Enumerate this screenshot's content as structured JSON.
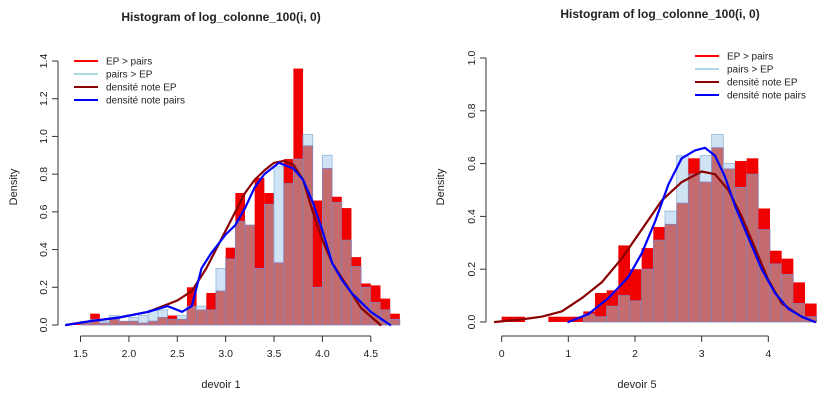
{
  "chart_data": [
    {
      "type": "histogram",
      "title": "Histogram of log_colonne_100(i, 0)",
      "xlabel": "devoir 1",
      "ylabel": "Density",
      "xlim": [
        1.35,
        4.75
      ],
      "ylim": [
        0,
        1.4
      ],
      "xticks": [
        1.5,
        2.0,
        2.5,
        3.0,
        3.5,
        4.0,
        4.5
      ],
      "xtick_labels": [
        "1.5",
        "2.0",
        "2.5",
        "3.0",
        "3.5",
        "4.0",
        "4.5"
      ],
      "yticks": [
        0,
        0.2,
        0.4,
        0.6,
        0.8,
        1.0,
        1.2,
        1.4
      ],
      "ytick_labels": [
        "0.0",
        "0.2",
        "0.4",
        "0.6",
        "0.8",
        "1.0",
        "1.2",
        "1.4"
      ],
      "legend": {
        "position": "top-left",
        "items": [
          {
            "label": "EP > pairs",
            "color": "#ff0000",
            "kind": "line"
          },
          {
            "label": "pairs > EP",
            "color": "#add8e6",
            "kind": "line"
          },
          {
            "label": "densité note EP",
            "color": "#8b0000",
            "kind": "line"
          },
          {
            "label": "densité note pairs",
            "color": "#0000ff",
            "kind": "line"
          }
        ]
      },
      "bins": {
        "start": 1.4,
        "width": 0.1,
        "ep": [
          0.01,
          0.01,
          0.06,
          0.01,
          0.03,
          0.02,
          0.02,
          0.01,
          0.02,
          0.04,
          0.05,
          0.03,
          0.2,
          0.08,
          0.17,
          0.18,
          0.41,
          0.7,
          0.53,
          0.78,
          0.7,
          0.33,
          0.88,
          1.36,
          0.95,
          0.66,
          0.83,
          0.68,
          0.62,
          0.36,
          0.22,
          0.21,
          0.14,
          0.06
        ],
        "pairs": [
          0.0,
          0.02,
          0.03,
          0.02,
          0.05,
          0.02,
          0.04,
          0.05,
          0.08,
          0.08,
          0.03,
          0.05,
          0.1,
          0.1,
          0.08,
          0.3,
          0.35,
          0.55,
          0.53,
          0.3,
          0.64,
          0.84,
          0.75,
          0.88,
          1.01,
          0.2,
          0.9,
          0.65,
          0.45,
          0.31,
          0.2,
          0.12,
          0.08,
          0.03
        ]
      },
      "series": [
        {
          "name": "densité note EP",
          "color": "#8b0000",
          "x": [
            1.35,
            1.6,
            1.9,
            2.2,
            2.5,
            2.65,
            2.8,
            2.95,
            3.1,
            3.2,
            3.3,
            3.4,
            3.5,
            3.6,
            3.7,
            3.8,
            3.9,
            4.0,
            4.1,
            4.2,
            4.4,
            4.6
          ],
          "y": [
            0.0,
            0.02,
            0.04,
            0.07,
            0.13,
            0.18,
            0.3,
            0.45,
            0.6,
            0.7,
            0.77,
            0.82,
            0.86,
            0.87,
            0.85,
            0.77,
            0.6,
            0.45,
            0.33,
            0.25,
            0.09,
            0.0
          ]
        },
        {
          "name": "densité note pairs",
          "color": "#0000ff",
          "x": [
            1.35,
            1.6,
            1.9,
            2.2,
            2.4,
            2.55,
            2.65,
            2.75,
            2.85,
            3.0,
            3.1,
            3.2,
            3.3,
            3.4,
            3.5,
            3.55,
            3.6,
            3.7,
            3.8,
            3.9,
            4.0,
            4.1,
            4.2,
            4.3,
            4.5,
            4.7
          ],
          "y": [
            0.0,
            0.02,
            0.04,
            0.07,
            0.1,
            0.07,
            0.1,
            0.3,
            0.38,
            0.48,
            0.53,
            0.62,
            0.73,
            0.8,
            0.84,
            0.86,
            0.85,
            0.83,
            0.77,
            0.65,
            0.5,
            0.33,
            0.24,
            0.17,
            0.07,
            0.0
          ]
        }
      ]
    },
    {
      "type": "histogram",
      "title": "Histogram of log_colonne_100(i, 0)",
      "xlabel": "devoir 5",
      "ylabel": "Density",
      "xlim": [
        -0.1,
        4.7
      ],
      "ylim": [
        0,
        1.0
      ],
      "xticks": [
        0,
        1,
        2,
        3,
        4
      ],
      "xtick_labels": [
        "0",
        "1",
        "2",
        "3",
        "4"
      ],
      "yticks": [
        0,
        0.2,
        0.4,
        0.6,
        0.8,
        1.0
      ],
      "ytick_labels": [
        "0.0",
        "0.2",
        "0.4",
        "0.6",
        "0.8",
        "1.0"
      ],
      "legend": {
        "position": "top-right",
        "items": [
          {
            "label": "EP > pairs",
            "color": "#ff0000",
            "kind": "line"
          },
          {
            "label": "pairs > EP",
            "color": "#add8e6",
            "kind": "line"
          },
          {
            "label": "densité note EP",
            "color": "#8b0000",
            "kind": "line"
          },
          {
            "label": "densité note pairs",
            "color": "#0000ff",
            "kind": "line"
          }
        ]
      },
      "bins": {
        "start": 0.0,
        "width": 0.175,
        "ep": [
          0.02,
          0.02,
          0.0,
          0.0,
          0.02,
          0.02,
          0.02,
          0.04,
          0.11,
          0.12,
          0.29,
          0.2,
          0.28,
          0.36,
          0.37,
          0.45,
          0.62,
          0.53,
          0.66,
          0.58,
          0.61,
          0.62,
          0.43,
          0.27,
          0.24,
          0.15,
          0.07
        ],
        "pairs": [
          0.0,
          0.0,
          0.0,
          0.0,
          0.0,
          0.0,
          0.0,
          0.03,
          0.02,
          0.06,
          0.1,
          0.08,
          0.2,
          0.31,
          0.42,
          0.63,
          0.56,
          0.63,
          0.71,
          0.6,
          0.51,
          0.56,
          0.35,
          0.22,
          0.18,
          0.07,
          0.02
        ]
      },
      "series": [
        {
          "name": "densité note EP",
          "color": "#8b0000",
          "x": [
            -0.1,
            0.3,
            0.6,
            0.9,
            1.2,
            1.5,
            1.8,
            2.1,
            2.4,
            2.7,
            3.0,
            3.2,
            3.4,
            3.6,
            3.8,
            4.0,
            4.2,
            4.5,
            4.7
          ],
          "y": [
            0.0,
            0.01,
            0.02,
            0.04,
            0.09,
            0.15,
            0.24,
            0.35,
            0.46,
            0.53,
            0.57,
            0.56,
            0.5,
            0.4,
            0.28,
            0.16,
            0.07,
            0.02,
            0.0
          ]
        },
        {
          "name": "densité note pairs",
          "color": "#0000ff",
          "x": [
            1.0,
            1.3,
            1.6,
            1.9,
            2.1,
            2.3,
            2.5,
            2.7,
            2.9,
            3.05,
            3.2,
            3.35,
            3.5,
            3.7,
            3.9,
            4.1,
            4.3,
            4.5,
            4.7
          ],
          "y": [
            0.0,
            0.03,
            0.09,
            0.17,
            0.26,
            0.38,
            0.52,
            0.62,
            0.65,
            0.66,
            0.63,
            0.55,
            0.44,
            0.32,
            0.2,
            0.11,
            0.05,
            0.02,
            0.0
          ]
        }
      ]
    }
  ]
}
